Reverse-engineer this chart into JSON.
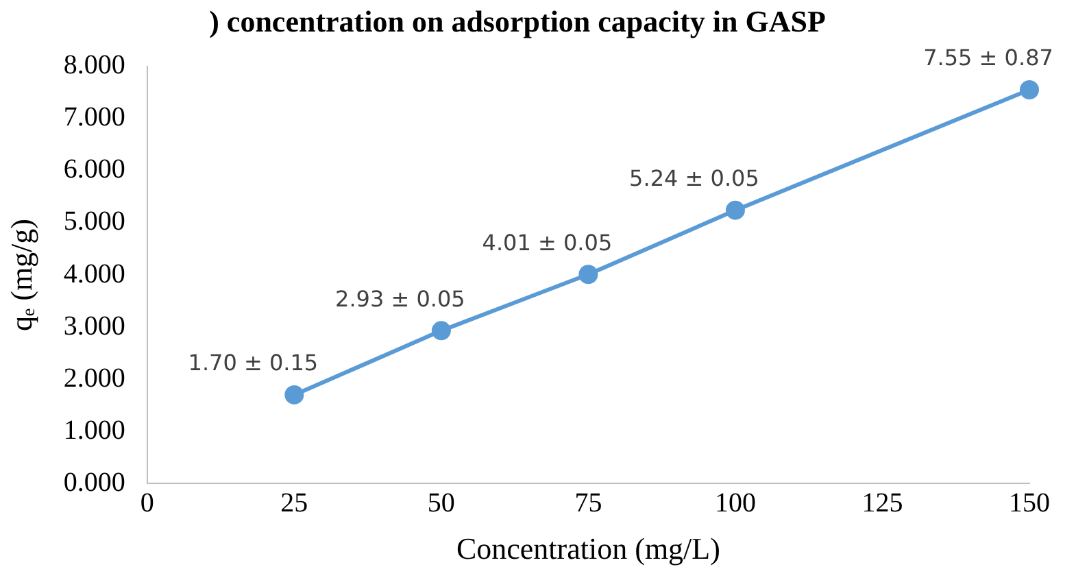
{
  "chart_data": {
    "type": "line",
    "title": ") concentration on adsorption capacity in GASP",
    "xlabel": "Concentration (mg/L)",
    "ylabel": "qₑ (mg/g)",
    "x": [
      25,
      50,
      75,
      100,
      150
    ],
    "series": [
      {
        "color": "#5b9bd5",
        "values": [
          1.7,
          2.93,
          4.01,
          5.24,
          7.55
        ],
        "value_labels": [
          "1.70 ± 0.15",
          "2.93 ± 0.05",
          "4.01 ± 0.05",
          "5.24 ± 0.05",
          "7.55 ± 0.87"
        ]
      }
    ],
    "xlim": [
      0,
      150
    ],
    "xticks": [
      0,
      25,
      50,
      75,
      100,
      125,
      150
    ],
    "ylim": [
      0,
      8
    ],
    "yticks": [
      {
        "value": 0,
        "label": "0.000"
      },
      {
        "value": 1,
        "label": "1.000"
      },
      {
        "value": 2,
        "label": "2.000"
      },
      {
        "value": 3,
        "label": "3.000"
      },
      {
        "value": 4,
        "label": "4.000"
      },
      {
        "value": 5,
        "label": "5.000"
      },
      {
        "value": 6,
        "label": "6.000"
      },
      {
        "value": 7,
        "label": "7.000"
      },
      {
        "value": 8,
        "label": "8.000"
      }
    ],
    "grid": false,
    "legend": false,
    "marker": "circle",
    "line_style": "solid"
  }
}
